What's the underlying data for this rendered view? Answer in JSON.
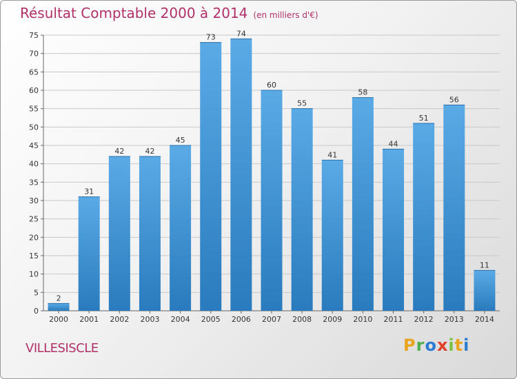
{
  "header": {
    "title": "Résultat Comptable 2000 à 2014",
    "unit": "(en milliers d'€)"
  },
  "footer": {
    "commune": "VILLESISCLE",
    "logo_letters": [
      "P",
      "r",
      "o",
      "x",
      "i",
      "t",
      "i"
    ],
    "logo_colors": [
      "#e8a41c",
      "#4caf50",
      "#2b7bd0",
      "#e0402a",
      "#7cc242",
      "#e8a41c",
      "#2b7bd0"
    ]
  },
  "colors": {
    "bar_top": "#5aaae6",
    "bar_bottom": "#2a7bbd",
    "grid": "#c8c8c8",
    "title": "#b0306a"
  },
  "chart_data": {
    "type": "bar",
    "title": "Résultat Comptable 2000 à 2014",
    "subtitle": "(en milliers d'€)",
    "categories": [
      "2000",
      "2001",
      "2002",
      "2003",
      "2004",
      "2005",
      "2006",
      "2007",
      "2008",
      "2009",
      "2010",
      "2011",
      "2012",
      "2013",
      "2014"
    ],
    "values": [
      2,
      31,
      42,
      42,
      45,
      73,
      74,
      60,
      55,
      41,
      58,
      44,
      51,
      56,
      11
    ],
    "ylim": [
      0,
      75
    ],
    "yticks": [
      0,
      5,
      10,
      15,
      20,
      25,
      30,
      35,
      40,
      45,
      50,
      55,
      60,
      65,
      70,
      75
    ],
    "grid": true
  }
}
